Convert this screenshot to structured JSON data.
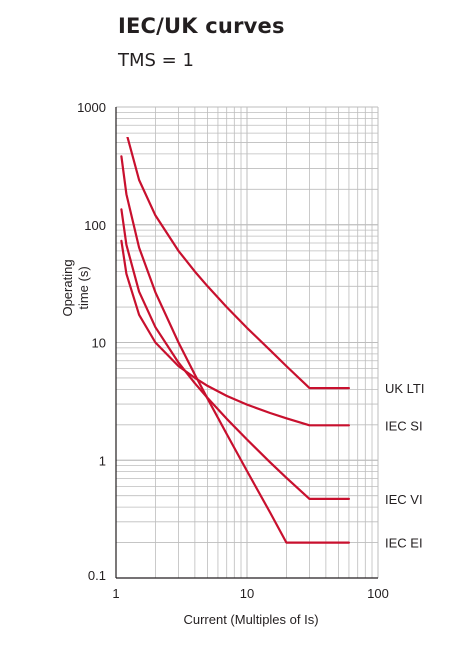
{
  "header": {
    "title": "IEC/UK curves",
    "subtitle": "TMS = 1"
  },
  "chart_data": {
    "type": "line",
    "title": "IEC/UK curves",
    "subtitle": "TMS = 1",
    "xlabel": "Current (Multiples of Is)",
    "ylabel_lines": [
      "Operating",
      "time (s)"
    ],
    "x_scale": "log",
    "y_scale": "log",
    "xlim": [
      1,
      100
    ],
    "ylim": [
      0.1,
      1000
    ],
    "x_ticks": [
      1,
      10,
      100
    ],
    "x_tick_labels": [
      "1",
      "10",
      "100"
    ],
    "y_ticks": [
      0.1,
      1,
      10,
      100,
      1000
    ],
    "y_tick_labels": [
      "0.1",
      "1",
      "10",
      "100",
      "1000"
    ],
    "grid": true,
    "line_color": "#c8102e",
    "series": [
      {
        "name": "UK LTI",
        "x": [
          1.1,
          1.2,
          1.5,
          2,
          3,
          4,
          5,
          7,
          10,
          15,
          20,
          30,
          60
        ],
        "y": [
          1200,
          600,
          240,
          120,
          60,
          40,
          30,
          20,
          13.3,
          8.6,
          6.3,
          4.1,
          4.1
        ]
      },
      {
        "name": "IEC SI",
        "x": [
          1.1,
          1.2,
          1.5,
          2,
          3,
          4,
          5,
          7,
          10,
          15,
          20,
          30,
          60
        ],
        "y": [
          73,
          38.3,
          17.2,
          10.0,
          6.3,
          5.0,
          4.28,
          3.52,
          2.97,
          2.52,
          2.27,
          1.98,
          1.98
        ]
      },
      {
        "name": "IEC VI",
        "x": [
          1.1,
          1.2,
          1.5,
          2,
          3,
          4,
          5,
          7,
          10,
          15,
          20,
          30,
          60
        ],
        "y": [
          135,
          67.5,
          27,
          13.5,
          6.75,
          4.5,
          3.38,
          2.25,
          1.5,
          0.96,
          0.71,
          0.47,
          0.47
        ]
      },
      {
        "name": "IEC EI",
        "x": [
          1.1,
          1.2,
          1.5,
          2,
          3,
          4,
          5,
          7,
          10,
          15,
          20,
          60
        ],
        "y": [
          381,
          181.8,
          64,
          26.7,
          10.0,
          5.33,
          3.33,
          1.67,
          0.81,
          0.36,
          0.2,
          0.2
        ]
      }
    ]
  }
}
